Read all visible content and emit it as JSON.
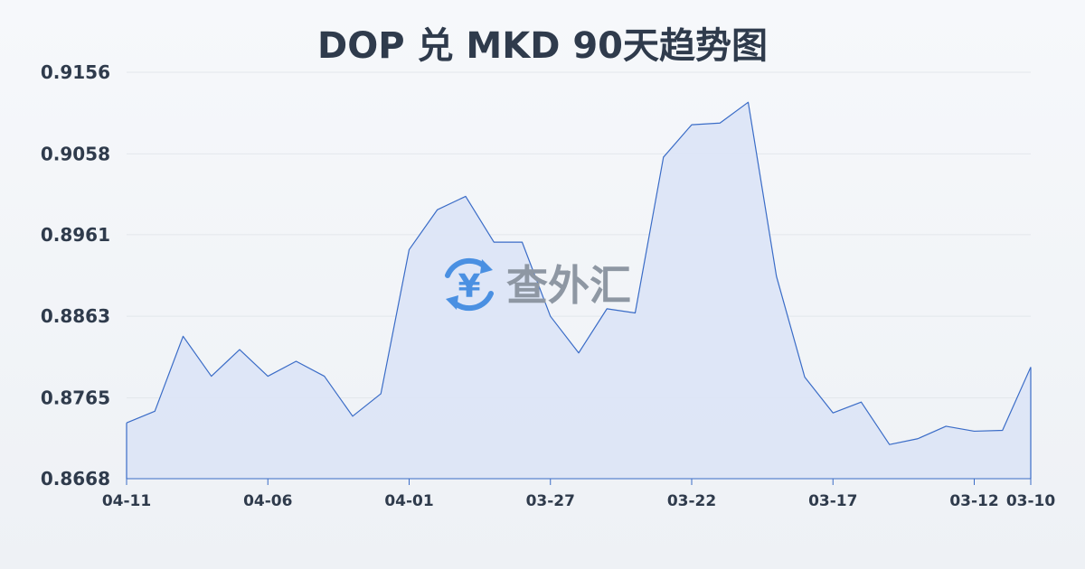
{
  "title": "DOP 兑 MKD 90天趋势图",
  "watermark": {
    "text": "查外汇",
    "icon": "yen-exchange-icon",
    "color": "#4a90e2"
  },
  "colors": {
    "line": "#3a6cc7",
    "fill": "#dbe4f6",
    "grid": "#e3e7ec",
    "text": "#2f3b4c"
  },
  "chart_data": {
    "type": "area",
    "title": "DOP 兑 MKD 90天趋势图",
    "xlabel": "",
    "ylabel": "",
    "ylim": [
      0.8668,
      0.9156
    ],
    "yticks": [
      "0.9156",
      "0.9058",
      "0.8961",
      "0.8863",
      "0.8765",
      "0.8668"
    ],
    "xticks": [
      {
        "index": 0,
        "label": "04-11"
      },
      {
        "index": 5,
        "label": "04-06"
      },
      {
        "index": 10,
        "label": "04-01"
      },
      {
        "index": 15,
        "label": "03-27"
      },
      {
        "index": 20,
        "label": "03-22"
      },
      {
        "index": 25,
        "label": "03-17"
      },
      {
        "index": 30,
        "label": "03-12"
      },
      {
        "index": 32,
        "label": "03-10"
      }
    ],
    "x": [
      "04-11",
      "04-10",
      "04-09",
      "04-08",
      "04-07",
      "04-06",
      "04-05",
      "04-04",
      "04-03",
      "04-02",
      "04-01",
      "03-31",
      "03-30",
      "03-29",
      "03-28",
      "03-27",
      "03-26",
      "03-25",
      "03-24",
      "03-23",
      "03-22",
      "03-21",
      "03-20",
      "03-19",
      "03-18",
      "03-17",
      "03-16",
      "03-15",
      "03-14",
      "03-13",
      "03-12",
      "03-11",
      "03-10"
    ],
    "values": [
      0.8735,
      0.8749,
      0.8839,
      0.8791,
      0.8823,
      0.8791,
      0.8809,
      0.8791,
      0.8743,
      0.877,
      0.8943,
      0.8991,
      0.9007,
      0.8952,
      0.8952,
      0.8863,
      0.8819,
      0.8872,
      0.8867,
      0.9054,
      0.9093,
      0.9095,
      0.912,
      0.8911,
      0.879,
      0.8747,
      0.876,
      0.8709,
      0.8716,
      0.8731,
      0.8725,
      0.8726,
      0.8802
    ],
    "grid": true,
    "legend": "none"
  }
}
